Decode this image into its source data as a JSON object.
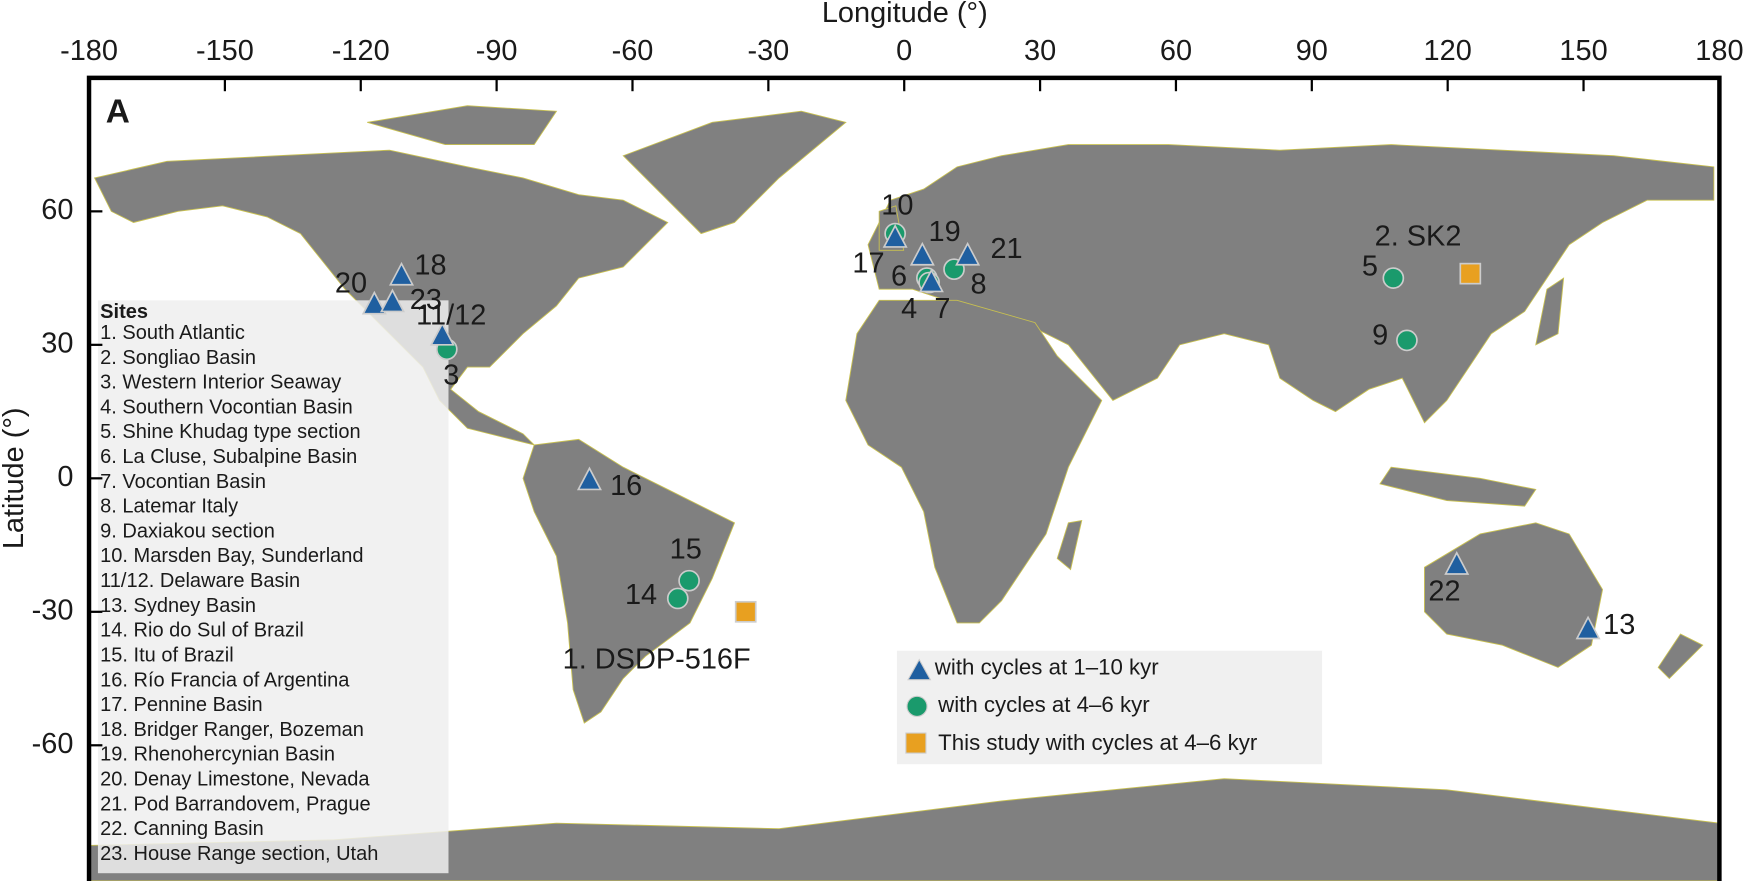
{
  "chart_data": {
    "type": "map",
    "panel_label": "A",
    "x_label": "Longitude (°)",
    "y_label": "Latitude (°)",
    "xlim": [
      -180,
      180
    ],
    "ylim": [
      -90,
      90
    ],
    "xticks": [
      -180,
      -150,
      -120,
      -90,
      -60,
      -30,
      0,
      30,
      60,
      90,
      120,
      150,
      180
    ],
    "yticks": [
      -60,
      -30,
      0,
      30,
      60
    ],
    "grid": false,
    "shape_colors": {
      "triangle": "#1f5fa0",
      "circle": "#1a9a6c",
      "square": "#e8a020"
    },
    "markers": [
      {
        "label": "1. DSDP-516F",
        "shape": "square",
        "lon": -35,
        "lat": -30
      },
      {
        "label": "2. SK2",
        "shape": "square",
        "lon": 125,
        "lat": 46
      },
      {
        "label": "3",
        "shape": "circle",
        "lon": -101,
        "lat": 29
      },
      {
        "label": "11/12",
        "shape": "triangle",
        "lon": -102,
        "lat": 32
      },
      {
        "label": "6",
        "shape": "circle",
        "lon": 5,
        "lat": 45
      },
      {
        "label": "4",
        "shape": "triangle",
        "lon": 6,
        "lat": 44
      },
      {
        "label": "7",
        "shape": "circle",
        "lon": 5.5,
        "lat": 44
      },
      {
        "label": "8",
        "shape": "circle",
        "lon": 11,
        "lat": 47
      },
      {
        "label": "10",
        "shape": "circle",
        "lon": -2,
        "lat": 55
      },
      {
        "label": "17",
        "shape": "triangle",
        "lon": -2,
        "lat": 54
      },
      {
        "label": "19",
        "shape": "triangle",
        "lon": 4,
        "lat": 50
      },
      {
        "label": "21",
        "shape": "triangle",
        "lon": 14,
        "lat": 50
      },
      {
        "label": "5",
        "shape": "circle",
        "lon": 108,
        "lat": 45
      },
      {
        "label": "9",
        "shape": "circle",
        "lon": 111,
        "lat": 31
      },
      {
        "label": "13",
        "shape": "triangle",
        "lon": 151,
        "lat": -34
      },
      {
        "label": "22",
        "shape": "triangle",
        "lon": 122,
        "lat": -19.5
      },
      {
        "label": "14",
        "shape": "circle",
        "lon": -50,
        "lat": -27
      },
      {
        "label": "15",
        "shape": "circle",
        "lon": -47.5,
        "lat": -23
      },
      {
        "label": "16",
        "shape": "triangle",
        "lon": -69.5,
        "lat": -0.5
      },
      {
        "label": "18",
        "shape": "triangle",
        "lon": -111,
        "lat": 45.5
      },
      {
        "label": "20",
        "shape": "triangle",
        "lon": -117,
        "lat": 39
      },
      {
        "label": "23",
        "shape": "triangle",
        "lon": -113,
        "lat": 39.5
      }
    ],
    "legend": [
      "with cycles at 1–10 kyr",
      "with cycles at 4–6 kyr",
      "This study with cycles at 4–6 kyr"
    ],
    "sites_title": "Sites",
    "sites": [
      "1. South Atlantic",
      "2. Songliao Basin",
      "3. Western Interior Seaway",
      "4. Southern Vocontian Basin",
      "5. Shine Khudag type section",
      "6. La Cluse, Subalpine Basin",
      "7. Vocontian Basin",
      "8. Latemar Italy",
      " 9. Daxiakou section",
      "10. Marsden Bay, Sunderland",
      "11/12. Delaware Basin",
      "13. Sydney Basin",
      "14. Rio do Sul of Brazil",
      "15. Itu of Brazil",
      "16. Río Francia of Argentina",
      "17. Pennine Basin",
      "18. Bridger Ranger, Bozeman",
      "19. Rhenohercynian Basin",
      "20. Denay Limestone, Nevada",
      "21. Pod Barrandovem, Prague",
      "22. Canning Basin",
      "23. House Range section, Utah"
    ]
  }
}
